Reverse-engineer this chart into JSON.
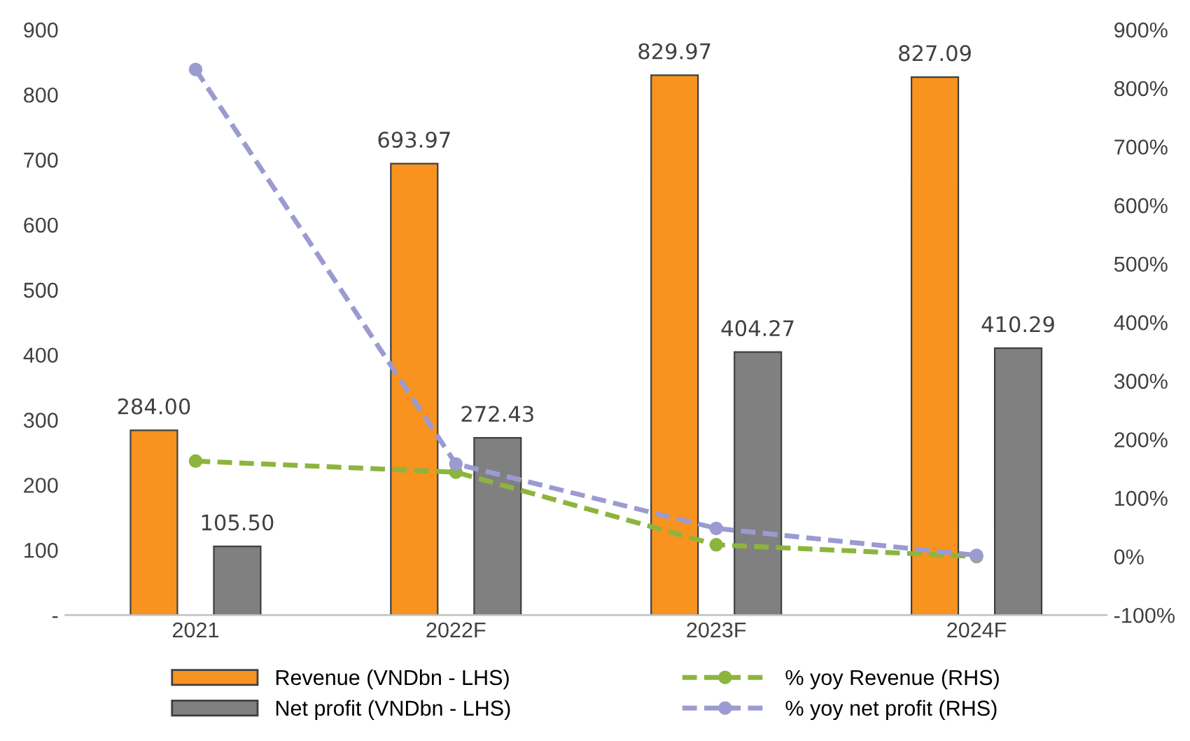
{
  "chart_data": {
    "type": "bar",
    "categories": [
      "2021",
      "2022F",
      "2023F",
      "2024F"
    ],
    "series": [
      {
        "name": "Revenue (VNDbn - LHS)",
        "color": "#f7931e",
        "values": [
          284.0,
          693.97,
          829.97,
          827.09
        ],
        "value_labels": [
          "284.00",
          "693.97",
          "829.97",
          "827.09"
        ]
      },
      {
        "name": "Net profit (VNDbn - LHS)",
        "color": "#808080",
        "values": [
          105.5,
          272.43,
          404.27,
          410.29
        ],
        "value_labels": [
          "105.50",
          "272.43",
          "404.27",
          "410.29"
        ]
      },
      {
        "name": "% yoy Revenue (RHS)",
        "type": "line",
        "axis": "y2",
        "color": "#8db43e",
        "line_style": "dashed",
        "marker": "circle",
        "values": [
          163,
          144,
          20,
          0
        ]
      },
      {
        "name": "% yoy net profit (RHS)",
        "type": "line",
        "axis": "y2",
        "color": "#9b9bd2",
        "line_style": "dashed",
        "marker": "circle",
        "values": [
          832,
          158,
          48,
          2
        ]
      }
    ],
    "ylim": [
      0,
      900
    ],
    "yticks": [
      {
        "value": 0,
        "label": "-"
      },
      100,
      200,
      300,
      400,
      500,
      600,
      700,
      800,
      900
    ],
    "y2lim": [
      -100,
      900
    ],
    "y2ticks": [
      {
        "value": -100,
        "label": "-100%"
      },
      {
        "value": 0,
        "label": "0%"
      },
      {
        "value": 100,
        "label": "100%"
      },
      {
        "value": 200,
        "label": "200%"
      },
      {
        "value": 300,
        "label": "300%"
      },
      {
        "value": 400,
        "label": "400%"
      },
      {
        "value": 500,
        "label": "500%"
      },
      {
        "value": 600,
        "label": "600%"
      },
      {
        "value": 700,
        "label": "700%"
      },
      {
        "value": 800,
        "label": "800%"
      },
      {
        "value": 900,
        "label": "900%"
      }
    ],
    "grid": false,
    "legend": "bottom"
  }
}
